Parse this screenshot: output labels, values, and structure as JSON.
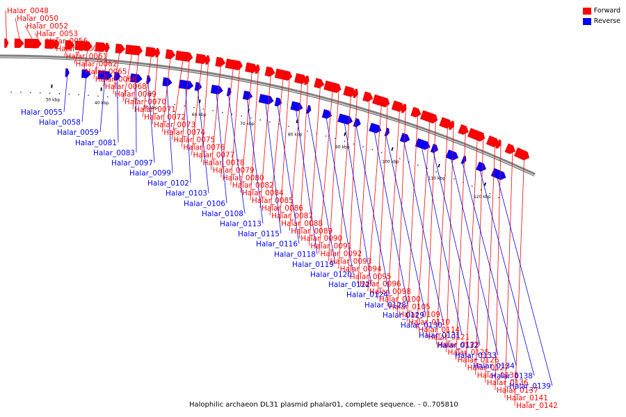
{
  "caption": "Halophilic archaeon DL31 plasmid phalar01, complete sequence. - 0..705810",
  "legend": [
    {
      "label": "Forward",
      "color": "#ff0000"
    },
    {
      "label": "Reverse",
      "color": "#0000ff"
    }
  ],
  "colors": {
    "forward": "#ff0000",
    "reverse": "#0000ff",
    "backbone": "#808080"
  },
  "ticks": [
    "30 kbp",
    "40 kbp",
    "50 kbp",
    "60 kbp",
    "70 kbp",
    "80 kbp",
    "90 kbp",
    "100 kbp",
    "110 kbp",
    "120 kbp"
  ],
  "genes": {
    "forward": [
      "Halar_0048",
      "Halar_0050",
      "Halar_0052",
      "Halar_0053",
      "Halar_0056",
      "Halar_0060",
      "Halar_0061",
      "Halar_0062",
      "Halar_0065",
      "Halar_0066",
      "Halar_0068",
      "Halar_0069",
      "Halar_0070",
      "Halar_0071",
      "Halar_0072",
      "Halar_0073",
      "Halar_0074",
      "Halar_0075",
      "Halar_0076",
      "Halar_0077",
      "Halar_0078",
      "Halar_0079",
      "Halar_0080",
      "Halar_0082",
      "Halar_0084",
      "Halar_0085",
      "Halar_0086",
      "Halar_0087",
      "Halar_0088",
      "Halar_0089",
      "Halar_0090",
      "Halar_0091",
      "Halar_0092",
      "Halar_0093",
      "Halar_0094",
      "Halar_0095",
      "Halar_0096",
      "Halar_0098",
      "Halar_0100",
      "Halar_0105",
      "Halar_0109",
      "Halar_0110",
      "Halar_0114",
      "Halar_0121",
      "Halar_0123",
      "Halar_0125",
      "Halar_0126",
      "Halar_0127",
      "Halar_0135",
      "Halar_0136",
      "Halar_0137",
      "Halar_0141",
      "Halar_0142"
    ],
    "reverse": [
      "Halar_0055",
      "Halar_0058",
      "Halar_0059",
      "Halar_0081",
      "Halar_0083",
      "Halar_0097",
      "Halar_0099",
      "Halar_0102",
      "Halar_0103",
      "Halar_0106",
      "Halar_0108",
      "Halar_0113",
      "Halar_0115",
      "Halar_0116",
      "Halar_0118",
      "Halar_0119",
      "Halar_0120",
      "Halar_0122",
      "Halar_0124",
      "Halar_0128",
      "Halar_0129",
      "Halar_0130",
      "Halar_0131",
      "Halar_0132",
      "Halar_0133",
      "Halar_0134",
      "Halar_0138",
      "Halar_0139"
    ]
  }
}
